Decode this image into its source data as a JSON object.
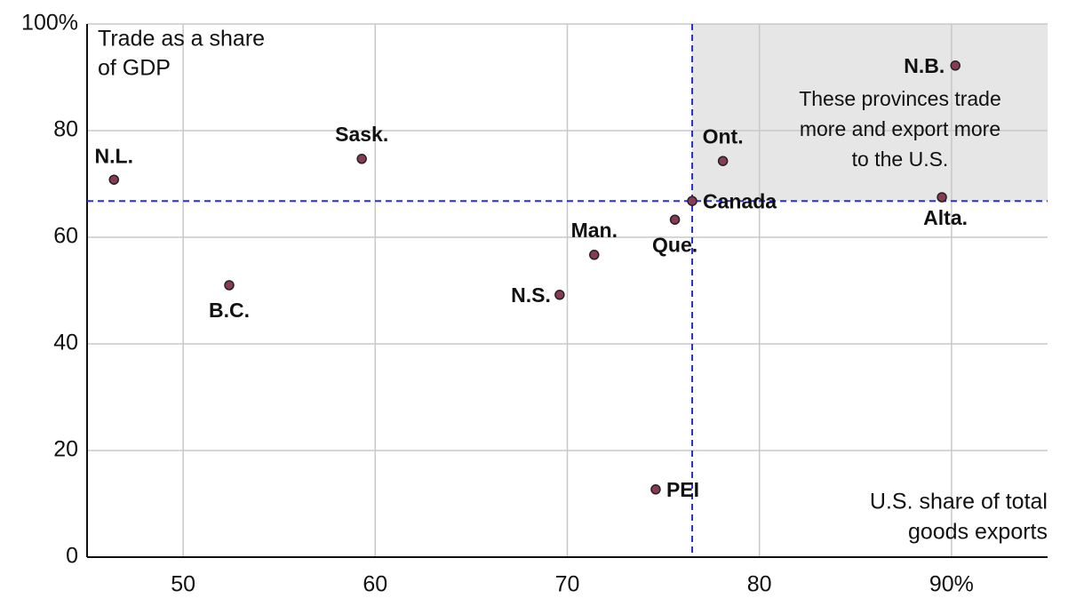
{
  "chart_data": {
    "type": "scatter",
    "ylabel": [
      "Trade as a share",
      "of GDP"
    ],
    "xlabel": [
      "U.S. share of total",
      "goods exports"
    ],
    "annotation": [
      "These provinces trade",
      "more and export more",
      "to the U.S."
    ],
    "labels": [
      "N.L.",
      "B.C.",
      "Sask.",
      "N.S.",
      "Man.",
      "PEI",
      "Que.",
      "Canada",
      "Ont.",
      "Alta.",
      "N.B."
    ],
    "x": [
      46.4,
      52.4,
      59.3,
      69.6,
      71.4,
      74.6,
      75.6,
      76.5,
      78.1,
      89.5,
      90.2
    ],
    "values": [
      70.8,
      51.0,
      74.7,
      49.2,
      56.7,
      12.7,
      63.3,
      66.8,
      74.3,
      67.5,
      92.2
    ],
    "color": "#8b3a55",
    "reference_color": "#2630d9",
    "shade_color": "#e6e6e6",
    "xlim": [
      45,
      95
    ],
    "ylim": [
      0,
      100
    ],
    "xticks": [
      50,
      60,
      70,
      80,
      {
        "value": 90,
        "label": "90%"
      }
    ],
    "yticks": [
      0,
      20,
      40,
      60,
      80,
      {
        "value": 100,
        "label": "100%"
      }
    ],
    "grid": true
  }
}
